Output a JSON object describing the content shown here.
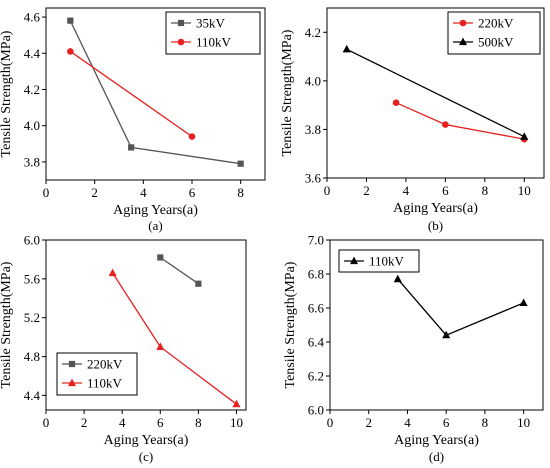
{
  "chart_data": [
    {
      "type": "line",
      "label": "(a)",
      "xlabel": "Aging Years(a)",
      "ylabel": "Tensile Strength(MPa)",
      "xlim": [
        0,
        9
      ],
      "ylim": [
        3.7,
        4.65
      ],
      "xticks": [
        0,
        2,
        4,
        6,
        8
      ],
      "yticks": [
        3.8,
        4.0,
        4.2,
        4.4,
        4.6
      ],
      "xtick_labels": [
        "0",
        "2",
        "4",
        "6",
        "8"
      ],
      "ytick_labels": [
        "3.8",
        "4.0",
        "4.2",
        "4.4",
        "4.6"
      ],
      "legend": "top-right",
      "series": [
        {
          "name": "35kV",
          "color": "#555555",
          "marker": "square",
          "x": [
            1,
            3.5,
            8
          ],
          "y": [
            4.58,
            3.88,
            3.79
          ]
        },
        {
          "name": "110kV",
          "color": "#e8201f",
          "marker": "circle",
          "x": [
            1,
            6
          ],
          "y": [
            4.41,
            3.94
          ]
        }
      ]
    },
    {
      "type": "line",
      "label": "(b)",
      "xlabel": "Aging Years(a)",
      "ylabel": "Tensile Strength(MPa)",
      "xlim": [
        0,
        11
      ],
      "ylim": [
        3.6,
        4.3
      ],
      "xticks": [
        0,
        2,
        4,
        6,
        8,
        10
      ],
      "yticks": [
        3.6,
        3.8,
        4.0,
        4.2
      ],
      "xtick_labels": [
        "0",
        "2",
        "4",
        "6",
        "8",
        "10"
      ],
      "ytick_labels": [
        "3.6",
        "3.8",
        "4.0",
        "4.2"
      ],
      "legend": "top-right",
      "series": [
        {
          "name": "220kV",
          "color": "#e8201f",
          "marker": "circle",
          "x": [
            3.5,
            6,
            10
          ],
          "y": [
            3.91,
            3.82,
            3.76
          ]
        },
        {
          "name": "500kV",
          "color": "#000000",
          "marker": "triangle",
          "x": [
            1,
            10
          ],
          "y": [
            4.13,
            3.77
          ]
        }
      ]
    },
    {
      "type": "line",
      "label": "(c)",
      "xlabel": "Aging Years(a)",
      "ylabel": "Tensile Strength(MPa)",
      "xlim": [
        0,
        10.5
      ],
      "ylim": [
        4.25,
        6.0
      ],
      "xticks": [
        0,
        2,
        4,
        6,
        8,
        10
      ],
      "yticks": [
        4.4,
        4.8,
        5.2,
        5.6,
        6.0
      ],
      "xtick_labels": [
        "0",
        "2",
        "4",
        "6",
        "8",
        "10"
      ],
      "ytick_labels": [
        "4.4",
        "4.8",
        "5.2",
        "5.6",
        "6.0"
      ],
      "legend": "bottom-left",
      "series": [
        {
          "name": "220kV",
          "color": "#555555",
          "marker": "square",
          "x": [
            6,
            8
          ],
          "y": [
            5.82,
            5.55
          ]
        },
        {
          "name": "110kV",
          "color": "#e8201f",
          "marker": "triangle",
          "x": [
            3.5,
            6,
            10
          ],
          "y": [
            5.66,
            4.9,
            4.31
          ]
        }
      ]
    },
    {
      "type": "line",
      "label": "(d)",
      "xlabel": "Aging Years(a)",
      "ylabel": "Tensile Strength(MPa)",
      "xlim": [
        0,
        11
      ],
      "ylim": [
        6.0,
        7.0
      ],
      "xticks": [
        0,
        2,
        4,
        6,
        8,
        10
      ],
      "yticks": [
        6.0,
        6.2,
        6.4,
        6.6,
        6.8,
        7.0
      ],
      "xtick_labels": [
        "0",
        "2",
        "4",
        "6",
        "8",
        "10"
      ],
      "ytick_labels": [
        "6.0",
        "6.2",
        "6.4",
        "6.6",
        "6.8",
        "7.0"
      ],
      "legend": "top-left",
      "series": [
        {
          "name": "110kV",
          "color": "#000000",
          "marker": "triangle",
          "x": [
            3.5,
            6,
            10
          ],
          "y": [
            6.77,
            6.44,
            6.63
          ]
        }
      ]
    }
  ]
}
